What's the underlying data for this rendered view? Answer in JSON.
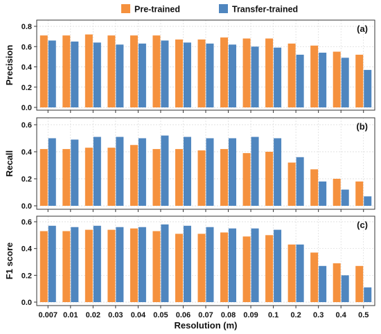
{
  "chart_data": {
    "type": "bar",
    "xlabel": "Resolution (m)",
    "categories": [
      "0.007",
      "0.01",
      "0.02",
      "0.03",
      "0.04",
      "0.05",
      "0.06",
      "0.07",
      "0.08",
      "0.09",
      "0.1",
      "0.2",
      "0.3",
      "0.4",
      "0.5"
    ],
    "legend": {
      "placement": "top",
      "entries": [
        "Pre-trained",
        "Transfer-trained"
      ]
    },
    "colors": {
      "Pre-trained": "#f5913e",
      "Transfer-trained": "#4f86bf"
    },
    "grid": true,
    "panels": [
      {
        "label": "(a)",
        "ylabel": "Precision",
        "ylim": [
          0,
          0.8
        ],
        "yticks": [
          "0.0",
          "0.2",
          "0.4",
          "0.6",
          "0.8"
        ],
        "series": [
          {
            "name": "Pre-trained",
            "values": [
              0.71,
              0.71,
              0.72,
              0.71,
              0.71,
              0.71,
              0.67,
              0.67,
              0.69,
              0.68,
              0.68,
              0.63,
              0.61,
              0.55,
              0.52
            ]
          },
          {
            "name": "Transfer-trained",
            "values": [
              0.66,
              0.65,
              0.64,
              0.62,
              0.63,
              0.66,
              0.64,
              0.63,
              0.62,
              0.6,
              0.59,
              0.52,
              0.54,
              0.49,
              0.37
            ]
          }
        ]
      },
      {
        "label": "(b)",
        "ylabel": "Recall",
        "ylim": [
          0,
          0.6
        ],
        "yticks": [
          "0.0",
          "0.2",
          "0.4",
          "0.6"
        ],
        "series": [
          {
            "name": "Pre-trained",
            "values": [
              0.42,
              0.42,
              0.43,
              0.43,
              0.45,
              0.42,
              0.42,
              0.41,
              0.42,
              0.39,
              0.4,
              0.32,
              0.27,
              0.2,
              0.18
            ]
          },
          {
            "name": "Transfer-trained",
            "values": [
              0.5,
              0.49,
              0.51,
              0.51,
              0.5,
              0.52,
              0.51,
              0.5,
              0.5,
              0.51,
              0.5,
              0.36,
              0.18,
              0.12,
              0.07
            ]
          }
        ]
      },
      {
        "label": "(c)",
        "ylabel": "F1 score",
        "ylim": [
          0,
          0.6
        ],
        "yticks": [
          "0.0",
          "0.2",
          "0.4",
          "0.6"
        ],
        "series": [
          {
            "name": "Pre-trained",
            "values": [
              0.53,
              0.53,
              0.54,
              0.54,
              0.55,
              0.53,
              0.51,
              0.51,
              0.52,
              0.49,
              0.5,
              0.43,
              0.37,
              0.29,
              0.27
            ]
          },
          {
            "name": "Transfer-trained",
            "values": [
              0.57,
              0.56,
              0.57,
              0.56,
              0.56,
              0.58,
              0.57,
              0.56,
              0.55,
              0.55,
              0.54,
              0.43,
              0.27,
              0.2,
              0.11
            ]
          }
        ]
      }
    ]
  }
}
